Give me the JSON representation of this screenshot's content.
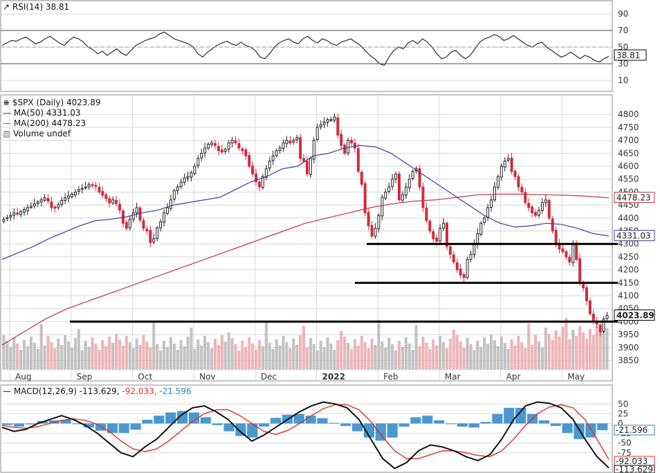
{
  "chart_data": {
    "type": "candlestick",
    "rsi_panel": {
      "label": "RSI(14) 38.81",
      "last_value": "38.81",
      "ticks": [
        "90",
        "70",
        "50",
        "30",
        "10"
      ],
      "overbought": 70,
      "oversold": 30,
      "ylim": [
        0,
        100
      ],
      "values": [
        52,
        55,
        58,
        57,
        60,
        62,
        58,
        54,
        56,
        60,
        63,
        59,
        55,
        52,
        58,
        62,
        60,
        56,
        50,
        47,
        42,
        45,
        40,
        44,
        48,
        43,
        40,
        46,
        52,
        55,
        58,
        60,
        62,
        66,
        68,
        64,
        60,
        58,
        56,
        54,
        50,
        42,
        38,
        44,
        48,
        52,
        55,
        57,
        54,
        52,
        56,
        52,
        50,
        46,
        38,
        36,
        42,
        50,
        55,
        58,
        60,
        56,
        54,
        60,
        63,
        58,
        55,
        60,
        58,
        54,
        52,
        56,
        58,
        60,
        56,
        52,
        46,
        40,
        36,
        30,
        28,
        38,
        46,
        50,
        48,
        55,
        58,
        54,
        60,
        56,
        50,
        42,
        36,
        38,
        44,
        46,
        40,
        36,
        40,
        48,
        56,
        60,
        62,
        65,
        63,
        58,
        60,
        64,
        60,
        56,
        52,
        50,
        54,
        56,
        50,
        46,
        42,
        38,
        40,
        44,
        40,
        36,
        40,
        38,
        34,
        32,
        36,
        38.81
      ]
    },
    "price_panel": {
      "title": "$SPX (Daily) 4023.89",
      "last_value": "4023.89",
      "ylim": [
        3830,
        4830
      ],
      "ticks": [
        "4800",
        "4750",
        "4700",
        "4650",
        "4600",
        "4550",
        "4500",
        "4450",
        "4400",
        "4350",
        "4300",
        "4250",
        "4200",
        "4150",
        "4100",
        "4050",
        "4000",
        "3950",
        "3900",
        "3850"
      ],
      "months": [
        "Aug",
        "Sep",
        "Oct",
        "Nov",
        "Dec",
        "2022",
        "Feb",
        "Mar",
        "Apr",
        "May"
      ],
      "closes": [
        4395,
        4402,
        4410,
        4420,
        4415,
        4425,
        4432,
        4440,
        4445,
        4455,
        4462,
        4470,
        4478,
        4465,
        4440,
        4438,
        4452,
        4468,
        4478,
        4485,
        4492,
        4500,
        4510,
        4515,
        4520,
        4530,
        4528,
        4522,
        4500,
        4488,
        4475,
        4458,
        4470,
        4455,
        4430,
        4380,
        4360,
        4395,
        4420,
        4440,
        4392,
        4360,
        4350,
        4305,
        4320,
        4362,
        4385,
        4420,
        4440,
        4470,
        4505,
        4520,
        4538,
        4555,
        4560,
        4575,
        4600,
        4630,
        4650,
        4670,
        4685,
        4690,
        4680,
        4660,
        4655,
        4665,
        4690,
        4700,
        4690,
        4670,
        4660,
        4640,
        4600,
        4570,
        4540,
        4520,
        4560,
        4590,
        4620,
        4640,
        4660,
        4670,
        4690,
        4700,
        4690,
        4700,
        4710,
        4630,
        4620,
        4570,
        4630,
        4700,
        4750,
        4760,
        4770,
        4780,
        4780,
        4790,
        4720,
        4680,
        4650,
        4700,
        4690,
        4670,
        4580,
        4530,
        4420,
        4370,
        4330,
        4360,
        4410,
        4480,
        4500,
        4520,
        4550,
        4570,
        4470,
        4490,
        4520,
        4550,
        4580,
        4590,
        4520,
        4440,
        4390,
        4350,
        4320,
        4310,
        4360,
        4380,
        4290,
        4260,
        4230,
        4200,
        4180,
        4170,
        4240,
        4260,
        4300,
        4340,
        4380,
        4400,
        4440,
        4470,
        4520,
        4560,
        4600,
        4620,
        4630,
        4580,
        4560,
        4520,
        4500,
        4460,
        4440,
        4420,
        4410,
        4430,
        4460,
        4470,
        4400,
        4350,
        4300,
        4280,
        4270,
        4250,
        4230,
        4300,
        4240,
        4150,
        4130,
        4080,
        4030,
        4000,
        3990,
        3960,
        4010,
        4023.89
      ],
      "ma50": {
        "label": "MA(50) 4331.03",
        "last_value": "4331.03",
        "color": "#3c3c9c",
        "values": [
          4240,
          4265,
          4290,
          4320,
          4345,
          4370,
          4390,
          4395,
          4405,
          4420,
          4430,
          4450,
          4460,
          4470,
          4480,
          4510,
          4540,
          4560,
          4590,
          4600,
          4640,
          4650,
          4670,
          4680,
          4675,
          4650,
          4610,
          4570,
          4530,
          4490,
          4450,
          4410,
          4380,
          4365,
          4370,
          4380,
          4375,
          4360,
          4340,
          4331.03
        ]
      },
      "ma200": {
        "label": "MA(200) 4478.23",
        "last_value": "4478.23",
        "color": "#c8324a",
        "values": [
          3910,
          3960,
          4010,
          4050,
          4080,
          4110,
          4140,
          4170,
          4200,
          4230,
          4260,
          4290,
          4320,
          4350,
          4380,
          4400,
          4420,
          4440,
          4455,
          4465,
          4470,
          4480,
          4490,
          4492,
          4492,
          4490,
          4488,
          4484,
          4478.23
        ]
      },
      "volume_label": "Volume undef",
      "support_lines": [
        4300,
        4150,
        4000
      ]
    },
    "macd_panel": {
      "label_prefix": "MACD(12,26,9)",
      "macd_value": "-113.629,",
      "signal_value": "-92.033,",
      "hist_value": "-21.596",
      "box_hist": "-21.596",
      "box_signal": "-92.033",
      "box_macd": "-113.629",
      "ticks": [
        "50",
        "25",
        "0",
        "-25",
        "-50",
        "-75"
      ],
      "ylim": [
        -125,
        70
      ],
      "macd": [
        -10,
        -20,
        -15,
        0,
        10,
        20,
        10,
        -5,
        -25,
        -50,
        -75,
        -85,
        -60,
        -40,
        -10,
        20,
        40,
        45,
        30,
        10,
        -20,
        -45,
        -30,
        -10,
        10,
        30,
        45,
        55,
        50,
        40,
        10,
        -40,
        -90,
        -115,
        -100,
        -70,
        -55,
        -60,
        -70,
        -85,
        -95,
        -80,
        -40,
        10,
        45,
        55,
        52,
        40,
        10,
        -40,
        -85,
        -113.629
      ],
      "signal": [
        -5,
        -10,
        -12,
        -8,
        0,
        8,
        12,
        8,
        -2,
        -20,
        -45,
        -65,
        -72,
        -65,
        -45,
        -20,
        5,
        25,
        35,
        35,
        20,
        0,
        -20,
        -28,
        -18,
        0,
        20,
        38,
        48,
        48,
        35,
        5,
        -35,
        -70,
        -90,
        -90,
        -80,
        -70,
        -70,
        -75,
        -82,
        -85,
        -70,
        -40,
        -5,
        25,
        42,
        48,
        40,
        10,
        -40,
        -92.033
      ]
    }
  }
}
